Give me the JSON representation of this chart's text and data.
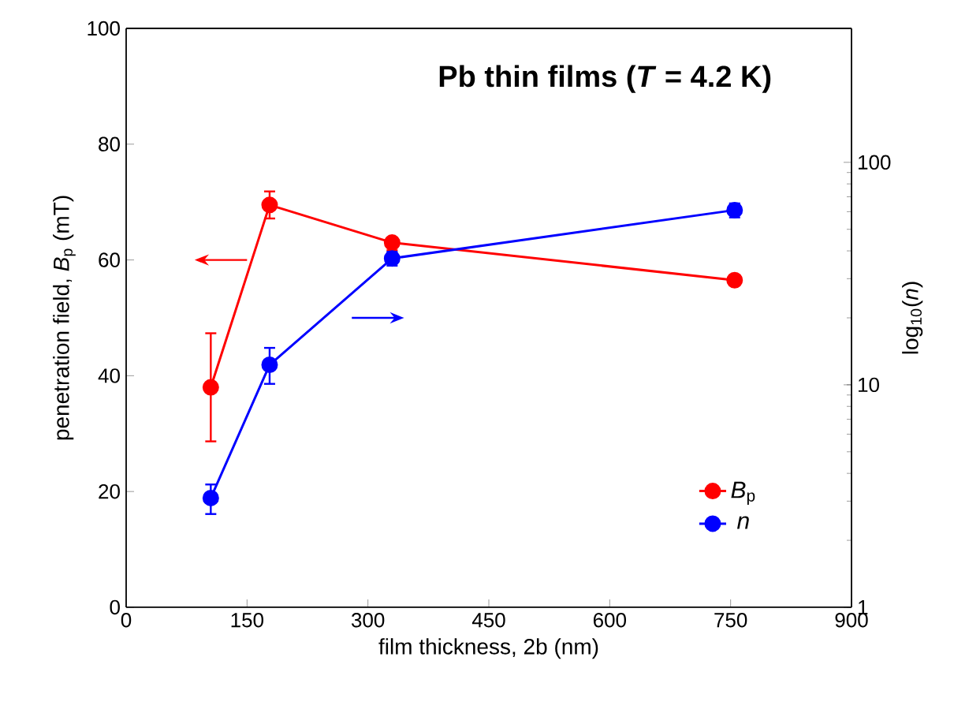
{
  "chart_data": {
    "type": "line",
    "title": "Pb thin films (*T* = 4.2 K)",
    "xlabel": "film thickness, 2b (nm)",
    "ylabel": "penetration field, *B*$_{p}$ (mT)",
    "y2label": "log$_{10}$(*n*)",
    "series": [
      {
        "name": "*B*$_{p}$",
        "color": "#ff0000",
        "x": [
          105,
          178,
          330,
          755
        ],
        "values": [
          38,
          69.5,
          63,
          56.5
        ],
        "errors": [
          [
            28.5,
            47.5
          ],
          [
            67,
            72
          ],
          [
            61.5,
            64
          ],
          [
            55.5,
            57.5
          ]
        ]
      },
      {
        "name": "*n*",
        "color": "#0000ff",
        "axis": "y2",
        "x": [
          105,
          178,
          330,
          755
        ],
        "values": [
          3.1,
          12.3,
          37,
          61
        ],
        "errors": [
          [
            2.6,
            3.6
          ],
          [
            10,
            14.8
          ],
          [
            34,
            40
          ],
          [
            56,
            66
          ]
        ]
      }
    ],
    "xlim": [
      0,
      900
    ],
    "xticks": [
      0,
      150,
      300,
      450,
      600,
      750,
      900
    ],
    "ylim": [
      0,
      100
    ],
    "yticks": [
      0,
      20,
      40,
      60,
      80,
      100
    ],
    "y2lim": [
      1,
      400
    ],
    "y2ticks": [
      1,
      10,
      100
    ],
    "log": "y2",
    "marker": "circle",
    "line_style": "solid",
    "legend": "bottom right",
    "grid": false
  }
}
